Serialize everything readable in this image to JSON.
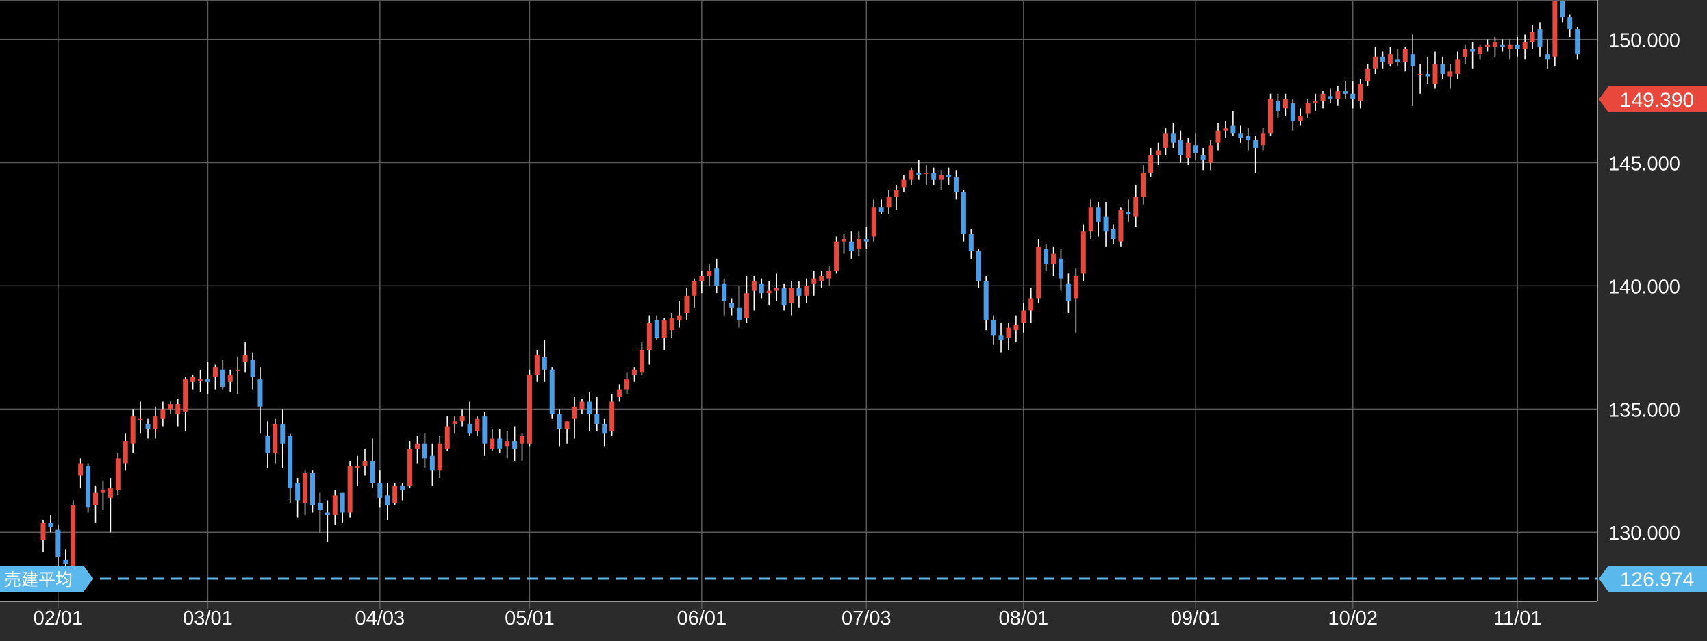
{
  "chart_data": {
    "type": "candlestick",
    "y_axis": {
      "position": "right",
      "ylim": [
        127.2,
        151.6
      ],
      "ticks": [
        {
          "value": 130,
          "label": "130.000"
        },
        {
          "value": 135,
          "label": "135.000"
        },
        {
          "value": 140,
          "label": "140.000"
        },
        {
          "value": 145,
          "label": "145.000"
        },
        {
          "value": 150,
          "label": "150.000"
        }
      ]
    },
    "x_axis": {
      "ticks": [
        {
          "index": 2,
          "label": "02/01"
        },
        {
          "index": 22,
          "label": "03/01"
        },
        {
          "index": 45,
          "label": "04/03"
        },
        {
          "index": 65,
          "label": "05/01"
        },
        {
          "index": 88,
          "label": "06/01"
        },
        {
          "index": 110,
          "label": "07/03"
        },
        {
          "index": 131,
          "label": "08/01"
        },
        {
          "index": 154,
          "label": "09/01"
        },
        {
          "index": 175,
          "label": "10/02"
        },
        {
          "index": 197,
          "label": "11/01"
        }
      ]
    },
    "grid": true,
    "up_color": "#e8483b",
    "down_color": "#4a9ee8",
    "current_price": {
      "value": 149.39,
      "label": "149.390",
      "color": "#e8483b"
    },
    "sell_average": {
      "value": 126.974,
      "label": "126.974",
      "name": "売建平均",
      "color": "#5bb8ec"
    },
    "candles": [
      [
        129.7,
        130.5,
        129.2,
        130.4
      ],
      [
        130.4,
        130.7,
        130.0,
        130.2
      ],
      [
        130.1,
        130.3,
        128.5,
        129.0
      ],
      [
        128.9,
        129.3,
        128.2,
        128.7
      ],
      [
        128.6,
        131.3,
        128.3,
        131.1
      ],
      [
        132.3,
        133.0,
        131.8,
        132.8
      ],
      [
        132.7,
        132.8,
        130.8,
        131.0
      ],
      [
        131.1,
        131.9,
        130.4,
        131.6
      ],
      [
        131.6,
        132.1,
        130.9,
        131.7
      ],
      [
        131.4,
        132.2,
        130.0,
        131.8
      ],
      [
        131.7,
        133.2,
        131.5,
        133.0
      ],
      [
        132.8,
        134.0,
        132.5,
        133.7
      ],
      [
        133.6,
        135.0,
        133.2,
        134.7
      ],
      [
        134.6,
        135.3,
        134.0,
        134.6
      ],
      [
        134.4,
        134.6,
        133.8,
        134.2
      ],
      [
        134.2,
        135.1,
        133.8,
        134.7
      ],
      [
        134.6,
        135.3,
        134.3,
        135.0
      ],
      [
        135.0,
        135.3,
        134.8,
        135.2
      ],
      [
        134.8,
        135.4,
        134.3,
        135.2
      ],
      [
        134.9,
        136.3,
        134.1,
        136.2
      ],
      [
        136.1,
        136.4,
        135.8,
        136.3
      ],
      [
        136.2,
        136.6,
        135.7,
        136.2
      ],
      [
        136.2,
        136.9,
        135.6,
        136.1
      ],
      [
        136.3,
        136.8,
        135.8,
        136.7
      ],
      [
        136.6,
        137.0,
        135.8,
        135.9
      ],
      [
        136.1,
        136.6,
        135.7,
        136.4
      ],
      [
        136.6,
        137.1,
        135.6,
        136.6
      ],
      [
        136.9,
        137.7,
        136.5,
        137.2
      ],
      [
        137.0,
        137.3,
        135.8,
        136.3
      ],
      [
        136.2,
        136.7,
        134.0,
        135.1
      ],
      [
        133.9,
        134.5,
        132.6,
        133.2
      ],
      [
        133.2,
        134.6,
        132.8,
        134.4
      ],
      [
        134.4,
        135.0,
        132.6,
        133.6
      ],
      [
        133.9,
        134.0,
        131.2,
        131.8
      ],
      [
        132.0,
        132.2,
        130.6,
        131.3
      ],
      [
        131.2,
        132.5,
        130.7,
        132.4
      ],
      [
        132.4,
        132.5,
        130.8,
        131.1
      ],
      [
        131.2,
        131.6,
        130.0,
        130.9
      ],
      [
        130.8,
        131.3,
        129.6,
        130.7
      ],
      [
        130.7,
        131.7,
        130.3,
        131.5
      ],
      [
        131.6,
        131.6,
        130.4,
        130.8
      ],
      [
        130.8,
        132.9,
        130.6,
        132.7
      ],
      [
        132.6,
        133.1,
        131.9,
        132.7
      ],
      [
        132.7,
        133.4,
        132.3,
        132.9
      ],
      [
        132.9,
        133.8,
        131.8,
        132.0
      ],
      [
        132.0,
        132.5,
        131.0,
        131.4
      ],
      [
        131.5,
        132.0,
        130.5,
        131.1
      ],
      [
        131.2,
        132.0,
        131.1,
        131.9
      ],
      [
        131.9,
        132.0,
        131.3,
        131.7
      ],
      [
        131.9,
        133.7,
        131.8,
        133.4
      ],
      [
        133.4,
        133.9,
        132.8,
        133.6
      ],
      [
        133.6,
        134.0,
        132.6,
        133.0
      ],
      [
        133.1,
        133.6,
        131.9,
        132.5
      ],
      [
        132.5,
        133.9,
        132.2,
        133.6
      ],
      [
        133.4,
        134.7,
        133.3,
        134.3
      ],
      [
        134.4,
        134.7,
        134.0,
        134.5
      ],
      [
        134.5,
        135.0,
        134.3,
        134.7
      ],
      [
        134.4,
        135.3,
        133.9,
        134.0
      ],
      [
        134.1,
        134.7,
        133.9,
        134.6
      ],
      [
        134.7,
        134.9,
        133.1,
        133.6
      ],
      [
        133.4,
        134.2,
        133.3,
        133.8
      ],
      [
        133.8,
        134.2,
        133.2,
        133.4
      ],
      [
        133.5,
        134.1,
        133.0,
        133.7
      ],
      [
        133.7,
        134.3,
        132.9,
        133.4
      ],
      [
        133.6,
        134.0,
        132.9,
        133.9
      ],
      [
        133.6,
        136.6,
        133.5,
        136.4
      ],
      [
        136.4,
        137.4,
        136.1,
        137.2
      ],
      [
        137.1,
        137.8,
        136.1,
        136.6
      ],
      [
        136.6,
        136.7,
        134.6,
        134.8
      ],
      [
        134.8,
        135.0,
        133.5,
        134.2
      ],
      [
        134.2,
        134.5,
        133.6,
        134.5
      ],
      [
        134.6,
        135.5,
        133.8,
        135.1
      ],
      [
        135.0,
        135.4,
        134.8,
        135.3
      ],
      [
        135.3,
        135.7,
        134.1,
        134.8
      ],
      [
        134.8,
        135.5,
        134.1,
        134.4
      ],
      [
        134.4,
        134.6,
        133.5,
        134.0
      ],
      [
        134.1,
        135.6,
        133.9,
        135.3
      ],
      [
        135.5,
        136.0,
        135.3,
        135.8
      ],
      [
        135.8,
        136.5,
        135.6,
        136.2
      ],
      [
        136.4,
        136.7,
        136.1,
        136.6
      ],
      [
        136.5,
        137.7,
        136.4,
        137.4
      ],
      [
        137.4,
        138.8,
        136.8,
        138.5
      ],
      [
        138.6,
        138.8,
        137.8,
        137.9
      ],
      [
        137.9,
        138.7,
        137.4,
        138.6
      ],
      [
        138.2,
        138.9,
        137.9,
        138.7
      ],
      [
        138.6,
        139.4,
        138.3,
        138.8
      ],
      [
        138.9,
        139.9,
        138.6,
        139.6
      ],
      [
        139.6,
        140.3,
        139.1,
        140.2
      ],
      [
        140.2,
        140.6,
        139.7,
        140.4
      ],
      [
        140.4,
        140.9,
        140.0,
        140.6
      ],
      [
        140.7,
        141.1,
        139.7,
        140.0
      ],
      [
        140.1,
        140.3,
        138.8,
        139.4
      ],
      [
        139.3,
        139.5,
        138.8,
        139.1
      ],
      [
        139.1,
        140.0,
        138.3,
        138.6
      ],
      [
        138.7,
        140.4,
        138.5,
        139.7
      ],
      [
        139.8,
        140.4,
        139.0,
        140.2
      ],
      [
        140.1,
        140.3,
        139.5,
        139.7
      ],
      [
        139.7,
        140.2,
        139.2,
        139.8
      ],
      [
        139.8,
        140.5,
        139.4,
        139.9
      ],
      [
        139.9,
        140.1,
        139.0,
        139.2
      ],
      [
        139.3,
        140.2,
        138.8,
        139.9
      ],
      [
        139.9,
        140.2,
        139.1,
        139.6
      ],
      [
        139.6,
        140.3,
        139.3,
        140.0
      ],
      [
        140.1,
        140.6,
        139.6,
        140.3
      ],
      [
        140.2,
        140.6,
        139.9,
        140.4
      ],
      [
        140.3,
        140.8,
        140.0,
        140.6
      ],
      [
        140.6,
        142.0,
        140.5,
        141.8
      ],
      [
        141.8,
        142.1,
        141.3,
        141.9
      ],
      [
        141.8,
        142.2,
        141.1,
        141.4
      ],
      [
        141.5,
        142.2,
        141.2,
        141.9
      ],
      [
        141.9,
        142.4,
        141.5,
        141.8
      ],
      [
        142.0,
        143.5,
        141.8,
        143.2
      ],
      [
        143.2,
        143.5,
        142.9,
        143.0
      ],
      [
        143.2,
        143.9,
        142.9,
        143.6
      ],
      [
        143.6,
        144.1,
        143.1,
        143.9
      ],
      [
        144.0,
        144.5,
        143.8,
        144.3
      ],
      [
        144.3,
        144.8,
        144.1,
        144.7
      ],
      [
        144.6,
        145.1,
        144.3,
        144.5
      ],
      [
        144.6,
        144.9,
        144.1,
        144.6
      ],
      [
        144.6,
        144.8,
        144.1,
        144.3
      ],
      [
        144.3,
        144.7,
        143.9,
        144.5
      ],
      [
        144.5,
        144.8,
        144.1,
        144.4
      ],
      [
        144.4,
        144.7,
        143.5,
        143.8
      ],
      [
        143.8,
        143.9,
        141.8,
        142.1
      ],
      [
        142.1,
        142.3,
        141.1,
        141.4
      ],
      [
        141.4,
        141.5,
        139.9,
        140.2
      ],
      [
        140.2,
        140.4,
        138.2,
        138.6
      ],
      [
        138.6,
        138.8,
        137.6,
        138.0
      ],
      [
        138.0,
        138.5,
        137.3,
        137.8
      ],
      [
        137.9,
        138.5,
        137.4,
        138.3
      ],
      [
        138.2,
        138.8,
        137.7,
        138.4
      ],
      [
        138.5,
        139.3,
        138.1,
        139.0
      ],
      [
        139.0,
        139.9,
        138.5,
        139.5
      ],
      [
        139.5,
        141.9,
        139.3,
        141.6
      ],
      [
        141.5,
        141.7,
        140.6,
        140.9
      ],
      [
        140.9,
        141.6,
        140.4,
        141.3
      ],
      [
        141.1,
        141.5,
        139.8,
        140.3
      ],
      [
        140.1,
        140.5,
        138.9,
        139.4
      ],
      [
        139.5,
        140.7,
        138.1,
        140.4
      ],
      [
        140.5,
        142.5,
        140.2,
        142.2
      ],
      [
        142.2,
        143.5,
        141.9,
        143.2
      ],
      [
        143.2,
        143.4,
        142.0,
        142.6
      ],
      [
        142.8,
        143.4,
        141.6,
        142.2
      ],
      [
        142.3,
        142.5,
        141.7,
        141.9
      ],
      [
        141.8,
        143.2,
        141.6,
        143.1
      ],
      [
        143.0,
        143.5,
        142.6,
        142.9
      ],
      [
        142.8,
        144.1,
        142.4,
        143.6
      ],
      [
        143.6,
        144.9,
        143.3,
        144.6
      ],
      [
        144.6,
        145.6,
        144.4,
        145.3
      ],
      [
        145.3,
        145.8,
        144.9,
        145.5
      ],
      [
        145.6,
        146.4,
        145.3,
        146.2
      ],
      [
        146.2,
        146.6,
        145.6,
        145.8
      ],
      [
        145.9,
        146.3,
        145.0,
        145.3
      ],
      [
        145.2,
        146.0,
        144.9,
        145.8
      ],
      [
        145.7,
        146.2,
        145.1,
        145.4
      ],
      [
        145.3,
        145.6,
        144.7,
        145.1
      ],
      [
        145.0,
        145.9,
        144.7,
        145.7
      ],
      [
        145.8,
        146.6,
        145.5,
        146.3
      ],
      [
        146.3,
        146.7,
        146.0,
        146.4
      ],
      [
        146.5,
        147.1,
        146.1,
        146.2
      ],
      [
        146.2,
        146.5,
        145.8,
        146.0
      ],
      [
        146.1,
        146.4,
        145.5,
        145.9
      ],
      [
        145.9,
        146.1,
        144.6,
        145.6
      ],
      [
        145.7,
        146.4,
        145.5,
        146.2
      ],
      [
        146.2,
        147.8,
        146.1,
        147.6
      ],
      [
        147.5,
        147.8,
        146.8,
        147.1
      ],
      [
        147.2,
        147.8,
        146.9,
        147.6
      ],
      [
        147.4,
        147.6,
        146.3,
        146.7
      ],
      [
        146.7,
        147.2,
        146.5,
        146.9
      ],
      [
        147.0,
        147.6,
        146.8,
        147.4
      ],
      [
        147.4,
        147.8,
        147.1,
        147.5
      ],
      [
        147.5,
        147.9,
        147.2,
        147.8
      ],
      [
        147.7,
        148.0,
        147.4,
        147.6
      ],
      [
        147.6,
        148.1,
        147.3,
        147.9
      ],
      [
        147.9,
        148.3,
        147.6,
        147.8
      ],
      [
        147.8,
        148.3,
        147.2,
        147.6
      ],
      [
        147.5,
        148.4,
        147.2,
        148.2
      ],
      [
        148.3,
        149.0,
        148.1,
        148.8
      ],
      [
        148.8,
        149.7,
        148.6,
        149.3
      ],
      [
        149.3,
        149.5,
        148.8,
        149.1
      ],
      [
        149.0,
        149.7,
        148.9,
        149.4
      ],
      [
        149.2,
        149.6,
        148.9,
        149.1
      ],
      [
        149.1,
        149.7,
        148.7,
        149.6
      ],
      [
        149.4,
        150.2,
        147.3,
        148.9
      ],
      [
        148.6,
        149.0,
        147.8,
        148.6
      ],
      [
        148.6,
        149.3,
        148.2,
        148.5
      ],
      [
        148.2,
        149.5,
        148.0,
        149.0
      ],
      [
        149.0,
        149.3,
        148.4,
        148.6
      ],
      [
        148.5,
        149.0,
        148.0,
        148.7
      ],
      [
        148.6,
        149.5,
        148.4,
        149.2
      ],
      [
        149.3,
        149.8,
        149.0,
        149.6
      ],
      [
        149.6,
        149.9,
        148.8,
        149.5
      ],
      [
        149.4,
        149.8,
        149.2,
        149.7
      ],
      [
        149.7,
        150.0,
        149.5,
        149.8
      ],
      [
        149.7,
        150.1,
        149.3,
        149.9
      ],
      [
        149.8,
        150.0,
        149.5,
        149.7
      ],
      [
        149.6,
        150.0,
        149.2,
        149.8
      ],
      [
        149.8,
        150.1,
        149.3,
        149.6
      ],
      [
        149.6,
        150.2,
        149.2,
        149.9
      ],
      [
        149.9,
        150.6,
        149.6,
        150.3
      ],
      [
        150.4,
        150.7,
        149.3,
        149.7
      ],
      [
        149.4,
        150.0,
        148.8,
        149.2
      ],
      [
        149.3,
        151.7,
        148.9,
        151.6
      ],
      [
        151.6,
        151.8,
        150.7,
        150.9
      ],
      [
        150.9,
        151.0,
        150.1,
        150.4
      ],
      [
        150.4,
        150.5,
        149.2,
        149.4
      ]
    ]
  }
}
